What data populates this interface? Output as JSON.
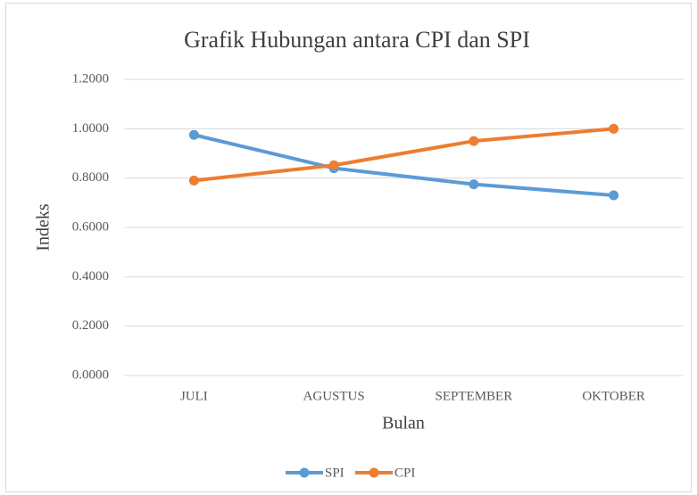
{
  "chart_data": {
    "type": "line",
    "title": "Grafik Hubungan antara CPI dan SPI",
    "x_label": "Bulan",
    "y_label": "Indeks",
    "categories": [
      "JULI",
      "AGUSTUS",
      "SEPTEMBER",
      "OKTOBER"
    ],
    "series": [
      {
        "name": "SPI",
        "color": "#5b9bd5",
        "values": [
          0.975,
          0.84,
          0.775,
          0.73
        ]
      },
      {
        "name": "CPI",
        "color": "#ed7d31",
        "values": [
          0.79,
          0.852,
          0.95,
          1.0
        ]
      }
    ],
    "ylim": [
      0,
      1.2
    ],
    "yticks": [
      {
        "value": 0,
        "label": "0.0000"
      },
      {
        "value": 0.2,
        "label": "0.2000"
      },
      {
        "value": 0.4,
        "label": "0.4000"
      },
      {
        "value": 0.6,
        "label": "0.6000"
      },
      {
        "value": 0.8,
        "label": "0.8000"
      },
      {
        "value": 1.0,
        "label": "1.0000"
      },
      {
        "value": 1.2,
        "label": "1.2000"
      }
    ],
    "grid": true,
    "legend": "bottom"
  }
}
